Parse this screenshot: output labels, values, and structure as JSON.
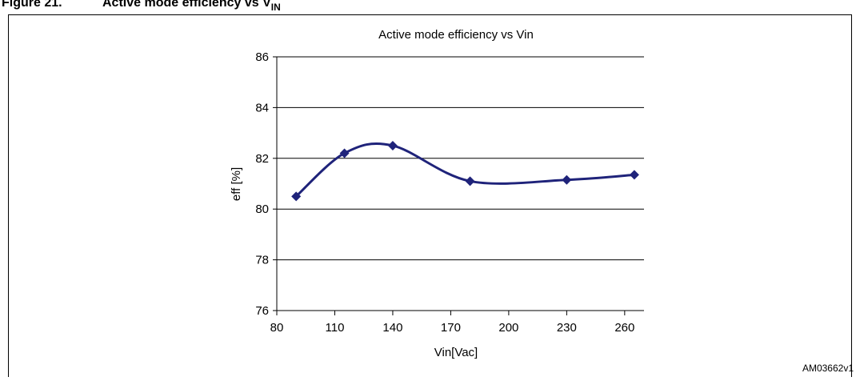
{
  "caption": {
    "number": "Figure 21.",
    "text": "Active mode efficiency vs V",
    "subscript": "IN"
  },
  "code": "AM03662v1",
  "chart_data": {
    "type": "line",
    "title": "Active mode efficiency vs Vin",
    "x_label": "Vin[Vac]",
    "y_label": "eff [%]",
    "x": [
      90,
      115,
      140,
      180,
      230,
      265
    ],
    "series": [
      {
        "name": "eff",
        "color": "#1f237a",
        "values": [
          80.5,
          82.2,
          82.5,
          81.1,
          81.15,
          81.35
        ]
      }
    ],
    "xlim": [
      80,
      270
    ],
    "xticks": [
      80,
      110,
      140,
      170,
      200,
      230,
      260
    ],
    "ylim": [
      76,
      86
    ],
    "yticks": [
      76,
      78,
      80,
      82,
      84,
      86
    ],
    "grid": true,
    "smooth": true
  }
}
